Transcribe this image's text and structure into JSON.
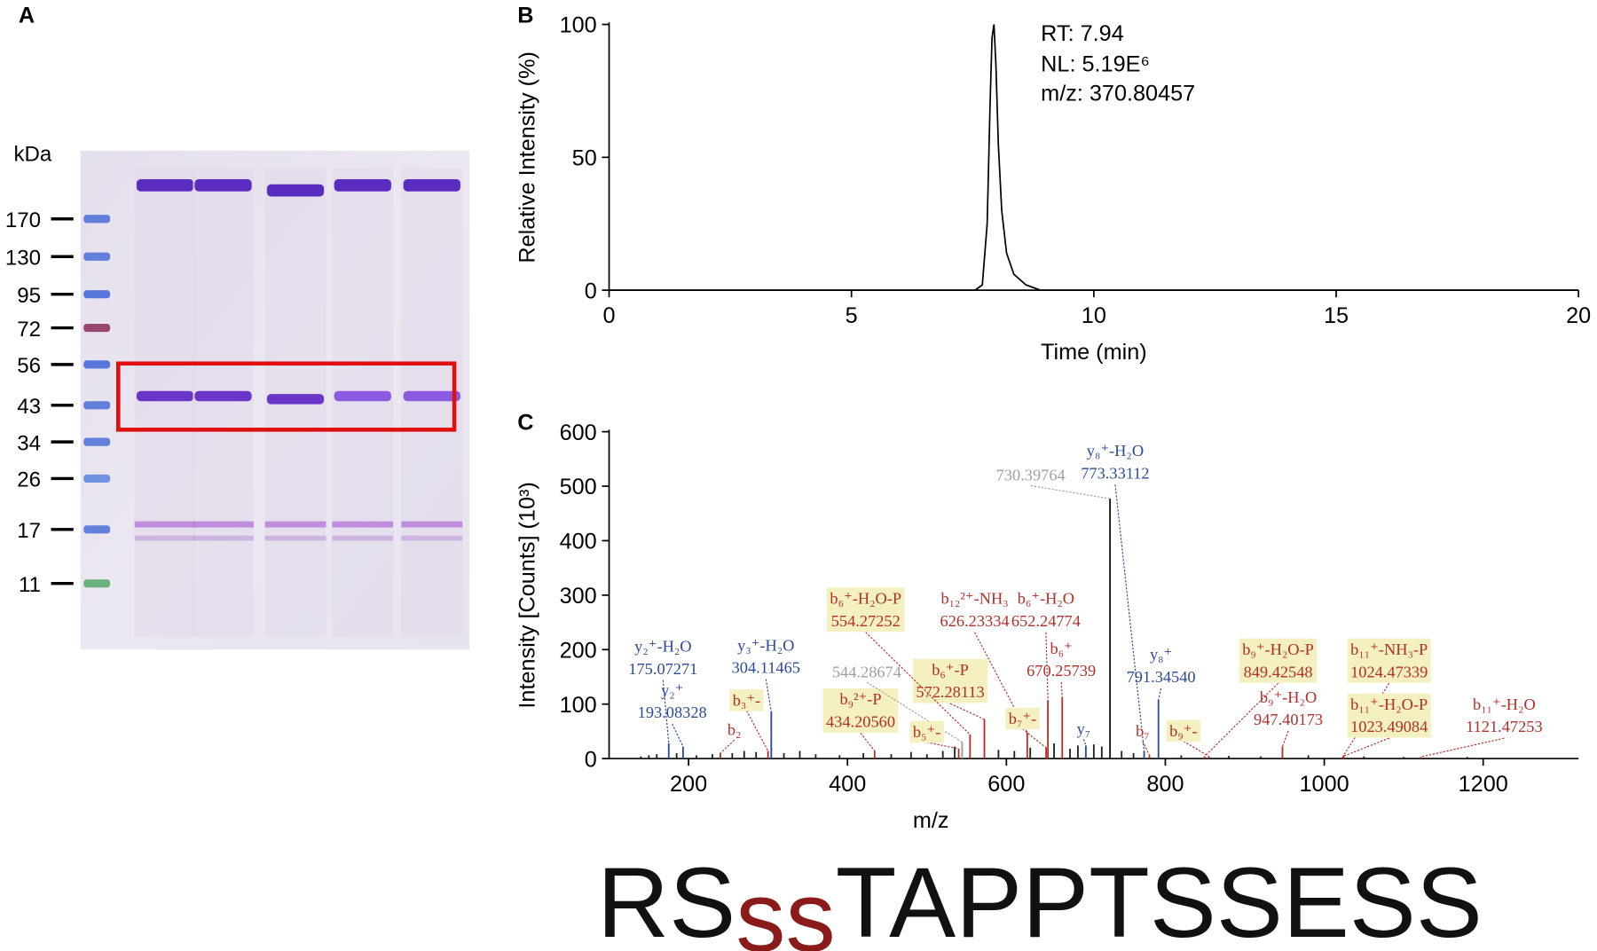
{
  "gel": {
    "panel": "A",
    "unit": "kDa",
    "markers": [
      170,
      130,
      95,
      72,
      56,
      43,
      34,
      26,
      17,
      11
    ]
  },
  "chart_data": [
    {
      "type": "line",
      "panel": "B",
      "x_label": "Time (min)",
      "y_label": "Relative Intensity (%)",
      "annotations": [
        "RT: 7.94",
        "NL: 5.19E⁶",
        "m/z: 370.80457"
      ],
      "x": [
        0,
        7.55,
        7.7,
        7.8,
        7.86,
        7.9,
        7.94,
        7.98,
        8.03,
        8.1,
        8.2,
        8.35,
        8.6,
        8.9,
        20
      ],
      "values": [
        0,
        0,
        2,
        25,
        70,
        95,
        100,
        85,
        55,
        30,
        14,
        6,
        2,
        0,
        0
      ],
      "color": "#000000",
      "xlim": [
        0,
        20
      ],
      "ylim": [
        0,
        100
      ],
      "xticks": [
        0,
        5,
        10,
        15,
        20
      ],
      "yticks": [
        0,
        50,
        100
      ]
    },
    {
      "type": "stem",
      "panel": "C",
      "x_label": "m/z",
      "y_label": "Intensity [Counts] (10³)",
      "x": [
        140,
        150,
        160,
        185,
        210,
        230,
        255,
        270,
        285,
        320,
        340,
        360,
        390,
        420,
        455,
        480,
        500,
        520,
        535,
        590,
        610,
        630,
        660,
        680,
        690,
        710,
        720,
        745,
        760,
        820,
        880,
        920,
        980,
        1050,
        1100,
        1180,
        175.07,
        193.08,
        304.11,
        700,
        773.33,
        791.35,
        240,
        300,
        434.21,
        540,
        554.27,
        572.28,
        626.23,
        650,
        652.25,
        670.26,
        780,
        849.43,
        855,
        947.4,
        1023.49,
        1024.47,
        1121.47,
        544.29,
        730.4
      ],
      "values": [
        4,
        6,
        8,
        10,
        6,
        8,
        10,
        14,
        12,
        10,
        14,
        8,
        6,
        10,
        8,
        12,
        8,
        14,
        22,
        16,
        14,
        20,
        28,
        18,
        24,
        26,
        22,
        14,
        10,
        6,
        5,
        4,
        6,
        4,
        3,
        3,
        28,
        22,
        86,
        24,
        14,
        108,
        10,
        14,
        14,
        18,
        44,
        72,
        48,
        20,
        107,
        112,
        6,
        4,
        4,
        22,
        4,
        6,
        3,
        30,
        477
      ],
      "colors": [
        "#222",
        "#222",
        "#222",
        "#222",
        "#222",
        "#222",
        "#222",
        "#222",
        "#222",
        "#222",
        "#222",
        "#222",
        "#222",
        "#222",
        "#222",
        "#222",
        "#222",
        "#222",
        "#222",
        "#222",
        "#222",
        "#222",
        "#222",
        "#222",
        "#222",
        "#222",
        "#222",
        "#222",
        "#222",
        "#222",
        "#222",
        "#222",
        "#222",
        "#222",
        "#222",
        "#222",
        "#2e4a9a",
        "#2e4a9a",
        "#2e4a9a",
        "#2e4a9a",
        "#2e4a9a",
        "#2e4a9a",
        "#b0302a",
        "#b0302a",
        "#b0302a",
        "#b0302a",
        "#b0302a",
        "#b0302a",
        "#b0302a",
        "#b0302a",
        "#b0302a",
        "#b0302a",
        "#b0302a",
        "#b0302a",
        "#b0302a",
        "#b0302a",
        "#b0302a",
        "#b0302a",
        "#b0302a",
        "#9a9a9a",
        "#111111"
      ],
      "xlim": [
        100,
        1320
      ],
      "ylim": [
        0,
        600
      ],
      "xticks": [
        200,
        400,
        600,
        800,
        1000,
        1200
      ],
      "yticks": [
        0,
        100,
        200,
        300,
        400,
        500,
        600
      ],
      "annotations": [
        {
          "label": "y₂⁺-H₂O",
          "mz": "175.07271",
          "color": "#2e4a9a",
          "boxed": false
        },
        {
          "label": "y₂⁺",
          "mz": "193.08328",
          "color": "#2e4a9a",
          "boxed": false
        },
        {
          "label": "y₃⁺-H₂O",
          "mz": "304.11465",
          "color": "#2e4a9a",
          "boxed": false
        },
        {
          "label": "b₃⁺-",
          "color": "#b0302a",
          "boxed": true
        },
        {
          "label": "b₂",
          "color": "#b0302a",
          "boxed": false
        },
        {
          "label": "b₉²⁺-P",
          "mz": "434.20560",
          "color": "#b0302a",
          "boxed": true
        },
        {
          "label": "544.28674",
          "color": "#a0a0a0",
          "boxed": false
        },
        {
          "label": "b₅⁺-",
          "color": "#b0302a",
          "boxed": true
        },
        {
          "label": "b₆⁺-P",
          "mz": "572.28113",
          "color": "#b0302a",
          "boxed": true
        },
        {
          "label": "b₆⁺-H₂O-P",
          "mz": "554.27252",
          "color": "#b0302a",
          "boxed": true
        },
        {
          "label": "b₁₂²⁺-NH₃",
          "mz": "626.23334",
          "color": "#b0302a",
          "boxed": false
        },
        {
          "label": "b₆⁺-H₂O",
          "mz": "652.24774",
          "color": "#b0302a",
          "boxed": false
        },
        {
          "label": "b₆⁺",
          "mz": "670.25739",
          "color": "#b0302a",
          "boxed": false
        },
        {
          "label": "b₇⁺-",
          "color": "#b0302a",
          "boxed": true
        },
        {
          "label": "y₇",
          "color": "#2e4a9a",
          "boxed": false
        },
        {
          "label": "730.39764",
          "color": "#a0a0a0",
          "boxed": false
        },
        {
          "label": "y₈⁺-H₂O",
          "mz": "773.33112",
          "color": "#2e4a9a",
          "boxed": false
        },
        {
          "label": "y₈⁺",
          "mz": "791.34540",
          "color": "#2e4a9a",
          "boxed": false
        },
        {
          "label": "b₇",
          "color": "#b0302a",
          "boxed": false
        },
        {
          "label": "b₉⁺-",
          "color": "#b0302a",
          "boxed": true
        },
        {
          "label": "b₉⁺-H₂O-P",
          "mz": "849.42548",
          "color": "#b0302a",
          "boxed": true
        },
        {
          "label": "b₉⁺-H₂O",
          "mz": "947.40173",
          "color": "#b0302a",
          "boxed": false
        },
        {
          "label": "b₁₁⁺-NH₃-P",
          "mz": "1024.47339",
          "color": "#b0302a",
          "boxed": true
        },
        {
          "label": "b₁₁⁺-H₂O-P",
          "mz": "1023.49084",
          "color": "#b0302a",
          "boxed": true
        },
        {
          "label": "b₁₁⁺-H₂O",
          "mz": "1121.47253",
          "color": "#b0302a",
          "boxed": false
        }
      ]
    }
  ],
  "sequence": {
    "parts": [
      {
        "text": "RS",
        "color": "#111111"
      },
      {
        "text": "ss",
        "color": "#8b1a1a"
      },
      {
        "text": "TAPPTSSESS",
        "color": "#111111"
      }
    ]
  }
}
